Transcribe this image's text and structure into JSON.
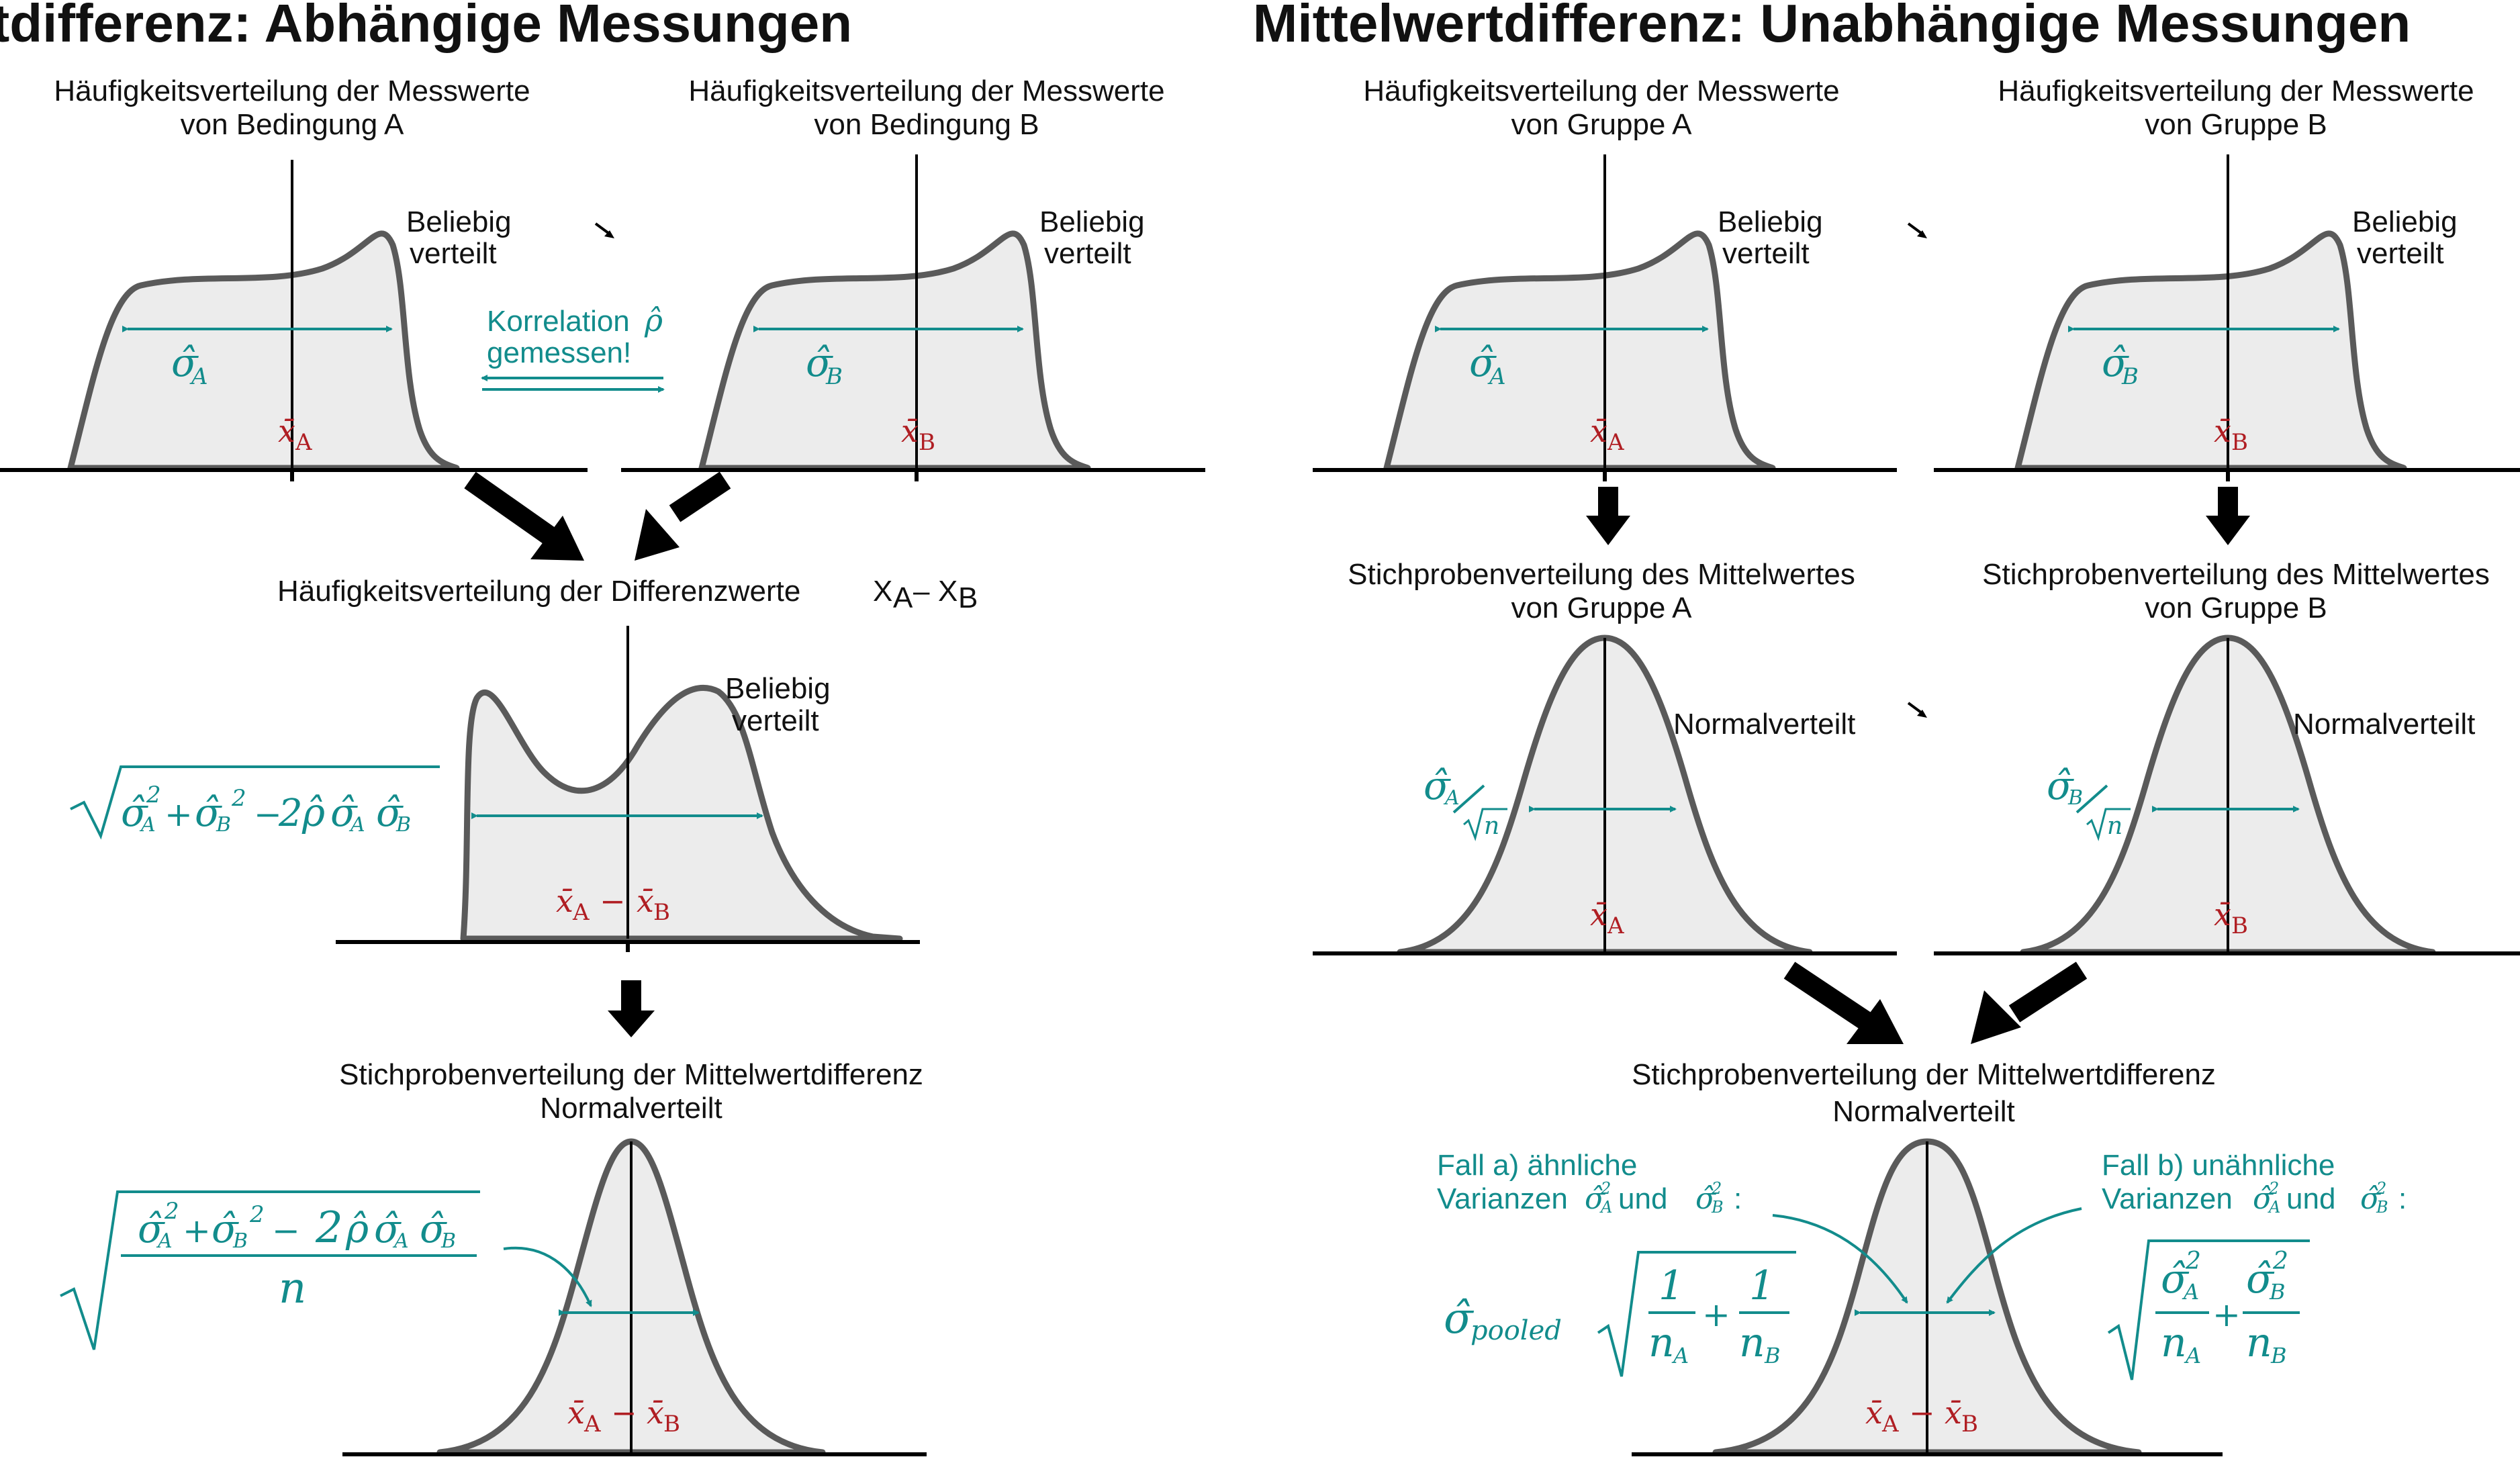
{
  "titles": {
    "left": "Mittelwertdifferenz: Abhängige Messungen",
    "right": "Mittelwertdifferenz: Unabhängige Messungen"
  },
  "left": {
    "headA": [
      "Häufigkeitsverteilung der Messwerte",
      "von Bedingung A"
    ],
    "headB": [
      "Häufigkeitsverteilung der Messwerte",
      "von Bedingung B"
    ],
    "beliebig": [
      "Beliebig",
      "verteilt"
    ],
    "korrelation": [
      "Korrelation",
      "gemessen!"
    ],
    "rho_symbol": "ρ̂",
    "diff_head": "Häufigkeitsverteilung der Differenzwerte",
    "diff_formula_x": "X",
    "diff_sub_a": "A",
    "diff_minus": "–",
    "diff_sub_b": "B",
    "stich_head": [
      "Stichprobenverteilung der Mittelwertdifferenz",
      "Normalverteilt"
    ]
  },
  "right": {
    "headA": [
      "Häufigkeitsverteilung der Messwerte",
      "von Gruppe A"
    ],
    "headB": [
      "Häufigkeitsverteilung der Messwerte",
      "von Gruppe B"
    ],
    "beliebig": [
      "Beliebig",
      "verteilt"
    ],
    "stichA": [
      "Stichprobenverteilung des Mittelwertes",
      "von Gruppe A"
    ],
    "stichB": [
      "Stichprobenverteilung des Mittelwertes",
      "von Gruppe B"
    ],
    "normalverteilt": "Normalverteilt",
    "final_head": [
      "Stichprobenverteilung der Mittelwertdifferenz",
      "Normalverteilt"
    ],
    "fall_a": [
      "Fall a) ähnliche",
      "Varianzen",
      "und"
    ],
    "fall_b": [
      "Fall b) unähnliche",
      "Varianzen",
      "und"
    ],
    "pooled_sub": "pooled"
  },
  "math": {
    "sigma": "σ̂",
    "sub_a": "A",
    "sub_b": "B",
    "xbar_a": "x̄",
    "n": "n",
    "one": "1",
    "plus": "+",
    "minus": "−",
    "two": "2",
    "sq": "2",
    "colon": ":"
  }
}
